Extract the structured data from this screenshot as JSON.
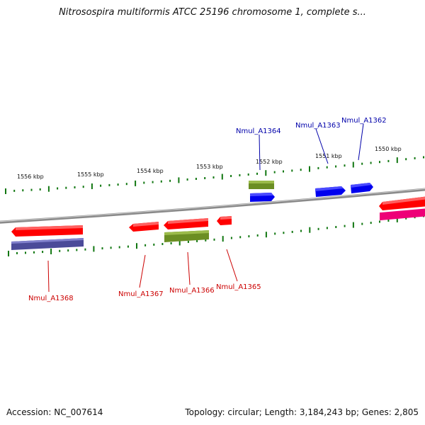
{
  "title": "Nitrosospira multiformis ATCC 25196 chromosome 1, complete s...",
  "footer": {
    "accession": "Accession: NC_007614",
    "summary": "Topology: circular; Length: 3,184,243 bp; Genes: 2,805"
  },
  "colors": {
    "forward_label": "#0000aa",
    "reverse_label": "#cc0000",
    "tick": "#117711",
    "backbone": "#8a8a8a",
    "gene_red": "#ff0000",
    "gene_blue": "#0000ee",
    "gene_olive": "#6b8e23",
    "gene_purple": "#4b4b99",
    "gene_magenta": "#ee0077"
  },
  "kbp_ticks": [
    "1556 kbp",
    "1555 kbp",
    "1554 kbp",
    "1553 kbp",
    "1552 kbp",
    "1551 kbp",
    "1550 kbp"
  ],
  "genes": [
    {
      "name": "Nmul_A1364",
      "strand": "forward"
    },
    {
      "name": "Nmul_A1363",
      "strand": "forward"
    },
    {
      "name": "Nmul_A1362",
      "strand": "forward"
    },
    {
      "name": "Nmul_A1368",
      "strand": "reverse"
    },
    {
      "name": "Nmul_A1367",
      "strand": "reverse"
    },
    {
      "name": "Nmul_A1366",
      "strand": "reverse"
    },
    {
      "name": "Nmul_A1365",
      "strand": "reverse"
    }
  ]
}
